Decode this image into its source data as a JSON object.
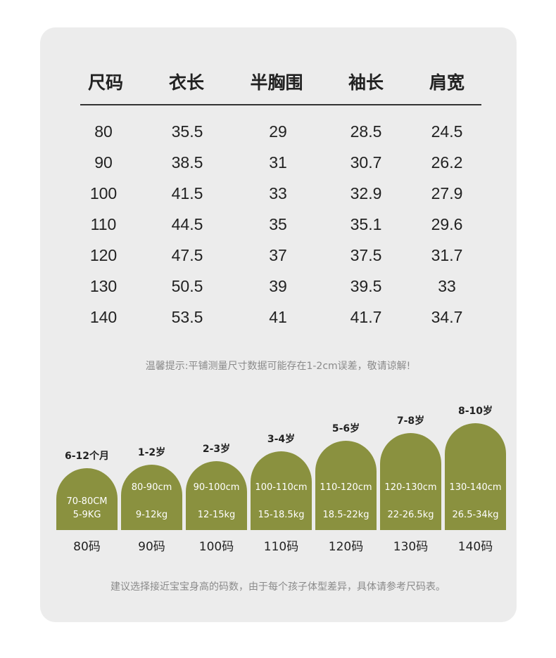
{
  "table": {
    "headers": [
      "尺码",
      "衣长",
      "半胸围",
      "袖长",
      "肩宽"
    ],
    "rows": [
      [
        "80",
        "35.5",
        "29",
        "28.5",
        "24.5"
      ],
      [
        "90",
        "38.5",
        "31",
        "30.7",
        "26.2"
      ],
      [
        "100",
        "41.5",
        "33",
        "32.9",
        "27.9"
      ],
      [
        "110",
        "44.5",
        "35",
        "35.1",
        "29.6"
      ],
      [
        "120",
        "47.5",
        "37",
        "37.5",
        "31.7"
      ],
      [
        "130",
        "50.5",
        "39",
        "39.5",
        "33"
      ],
      [
        "140",
        "53.5",
        "41",
        "41.7",
        "34.7"
      ]
    ]
  },
  "tip": "温馨提示:平铺测量尺寸数据可能存在1-2cm误差，敬请谅解!",
  "bars": [
    {
      "age": "6-12个月",
      "height_range": "70-80CM",
      "weight_range": "5-9KG",
      "size": "80码"
    },
    {
      "age": "1-2岁",
      "height_range": "80-90cm",
      "weight_range": "9-12kg",
      "size": "90码"
    },
    {
      "age": "2-3岁",
      "height_range": "90-100cm",
      "weight_range": "12-15kg",
      "size": "100码"
    },
    {
      "age": "3-4岁",
      "height_range": "100-110cm",
      "weight_range": "15-18.5kg",
      "size": "110码"
    },
    {
      "age": "5-6岁",
      "height_range": "110-120cm",
      "weight_range": "18.5-22kg",
      "size": "120码"
    },
    {
      "age": "7-8岁",
      "height_range": "120-130cm",
      "weight_range": "22-26.5kg",
      "size": "130码"
    },
    {
      "age": "8-10岁",
      "height_range": "130-140cm",
      "weight_range": "26.5-34kg",
      "size": "140码"
    }
  ],
  "footer_note": "建议选择接近宝宝身高的码数，由于每个孩子体型差异，具体请参考尺码表。",
  "colors": {
    "bar": "#8a913f",
    "card": "#ececec"
  }
}
